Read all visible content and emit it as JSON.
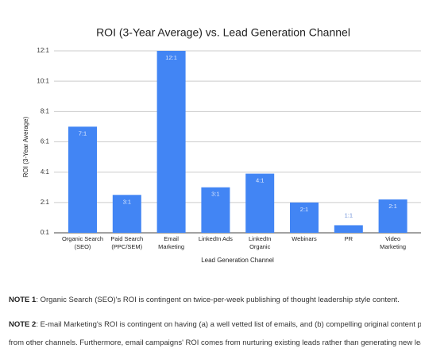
{
  "chart_data": {
    "type": "bar",
    "title": "ROI (3-Year Average) vs. Lead Generation Channel",
    "y_label": "ROI (3-Year Average)",
    "x_label": "Lead Generation Channel",
    "categories": [
      [
        "Organic Search",
        "(SEO)"
      ],
      [
        "Paid Search",
        "(PPC/SEM)"
      ],
      [
        "Email",
        "Marketing"
      ],
      [
        "LinkedIn Ads"
      ],
      [
        "LinkedIn",
        "Organic"
      ],
      [
        "Webinars"
      ],
      [
        "PR"
      ],
      [
        "Video",
        "Marketing"
      ]
    ],
    "values": [
      7,
      2.5,
      12,
      3,
      3.9,
      2,
      0.5,
      2.2
    ],
    "value_labels": [
      "7:1",
      "3:1",
      "12:1",
      "3:1",
      "4:1",
      "2:1",
      "1:1",
      "2:1"
    ],
    "color": "#4285f4",
    "ylim": [
      0,
      12
    ],
    "yticks": [
      {
        "value": 0,
        "label": "0:1"
      },
      {
        "value": 2,
        "label": "2:1"
      },
      {
        "value": 4,
        "label": "4:1"
      },
      {
        "value": 6,
        "label": "6:1"
      },
      {
        "value": 8,
        "label": "8:1"
      },
      {
        "value": 10,
        "label": "10:1"
      },
      {
        "value": 12,
        "label": "12:1"
      }
    ],
    "grid": true
  },
  "notes": [
    {
      "label": "NOTE 1",
      "lines": [
        ": Organic Search (SEO)'s ROI is contingent on twice-per-week publishing of thought leadership style content."
      ]
    },
    {
      "label": "NOTE 2",
      "lines": [
        ": E-mail Marketing's ROI is contingent on having (a) a well vetted list of emails, and (b) compelling original content procure",
        "from other channels. Furthermore, email campaigns' ROI comes from nurturing existing leads rather than generating new leads."
      ]
    }
  ]
}
